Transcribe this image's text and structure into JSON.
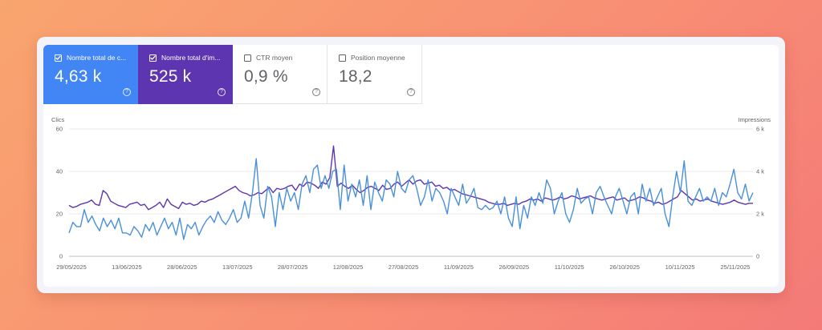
{
  "metrics": [
    {
      "label": "Nombre total de c...",
      "value": "4,63 k",
      "checked": true,
      "color": "#4285f4"
    },
    {
      "label": "Nombre total d'im...",
      "value": "525 k",
      "checked": true,
      "color": "#5e35b1"
    },
    {
      "label": "CTR moyen",
      "value": "0,9 %",
      "checked": false
    },
    {
      "label": "Position moyenne",
      "value": "18,2",
      "checked": false
    }
  ],
  "help_glyph": "?",
  "chart_data": {
    "type": "line",
    "left_axis_label": "Clics",
    "right_axis_label": "Impressions",
    "left_ticks": [
      "0",
      "20",
      "40",
      "60"
    ],
    "right_ticks": [
      "0",
      "2 k",
      "4 k",
      "6 k"
    ],
    "left_ylim": [
      0,
      60
    ],
    "right_ylim": [
      0,
      6000
    ],
    "grid": true,
    "x_labels": [
      "29/05/2025",
      "13/06/2025",
      "28/06/2025",
      "13/07/2025",
      "28/07/2025",
      "12/08/2025",
      "27/08/2025",
      "11/09/2025",
      "26/09/2025",
      "11/10/2025",
      "26/10/2025",
      "10/11/2025",
      "25/11/2025"
    ],
    "series": [
      {
        "axis": "left",
        "color": "#4a90d9",
        "values": [
          11,
          16,
          14,
          14,
          22,
          16,
          19,
          15,
          12,
          18,
          14,
          17,
          13,
          18,
          11,
          11,
          10,
          14,
          12,
          9,
          15,
          12,
          16,
          10,
          14,
          18,
          13,
          16,
          10,
          18,
          8,
          15,
          13,
          16,
          10,
          14,
          17,
          19,
          16,
          21,
          17,
          15,
          18,
          22,
          16,
          18,
          26,
          18,
          30,
          46,
          24,
          18,
          33,
          28,
          14,
          30,
          22,
          32,
          26,
          30,
          22,
          34,
          38,
          30,
          41,
          43,
          32,
          38,
          32,
          40,
          41,
          22,
          43,
          26,
          34,
          28,
          36,
          24,
          38,
          22,
          35,
          30,
          26,
          36,
          34,
          28,
          40,
          32,
          30,
          36,
          38,
          32,
          24,
          28,
          36,
          26,
          32,
          30,
          26,
          20,
          32,
          28,
          24,
          34,
          25,
          28,
          32,
          23,
          22,
          24,
          22,
          23,
          26,
          20,
          28,
          18,
          14,
          28,
          13,
          24,
          18,
          28,
          24,
          30,
          25,
          36,
          32,
          20,
          26,
          30,
          20,
          16,
          22,
          32,
          25,
          27,
          28,
          20,
          30,
          33,
          28,
          24,
          20,
          28,
          32,
          26,
          20,
          28,
          30,
          20,
          34,
          26,
          32,
          24,
          28,
          32,
          20,
          14,
          28,
          40,
          30,
          45,
          26,
          24,
          28,
          32,
          26,
          28,
          26,
          32,
          24,
          30,
          28,
          34,
          41,
          30,
          27,
          34,
          26,
          30
        ]
      },
      {
        "axis": "right",
        "color": "#5e35b1",
        "values": [
          2400,
          2300,
          2350,
          2450,
          2500,
          2550,
          2650,
          2450,
          2400,
          3100,
          2950,
          2600,
          2500,
          2400,
          2350,
          2300,
          2450,
          2500,
          2550,
          2400,
          2450,
          2200,
          2300,
          2400,
          2550,
          2300,
          2700,
          2450,
          2350,
          2250,
          2550,
          2450,
          2500,
          2400,
          2450,
          2600,
          2550,
          2650,
          2700,
          2800,
          2900,
          3000,
          3100,
          3200,
          3300,
          3100,
          3000,
          2950,
          2850,
          2900,
          3000,
          2950,
          3100,
          3250,
          3000,
          3200,
          3150,
          3200,
          3300,
          3350,
          3100,
          3400,
          3300,
          3500,
          3450,
          3350,
          3200,
          3500,
          3400,
          3700,
          5200,
          3300,
          3450,
          3300,
          3200,
          3350,
          3150,
          3000,
          3100,
          3250,
          3300,
          3200,
          3100,
          3350,
          3150,
          3200,
          3400,
          3500,
          3300,
          3450,
          3600,
          3400,
          3550,
          3600,
          3400,
          3450,
          3500,
          3300,
          3350,
          3200,
          3250,
          3100,
          3150,
          3050,
          2950,
          2900,
          2850,
          2800,
          2750,
          2700,
          2650,
          2550,
          2500,
          2450,
          2450,
          2500,
          2400,
          2450,
          2500,
          2450,
          2550,
          2600,
          2700,
          2650,
          2700,
          2600,
          2750,
          2700,
          2650,
          2700,
          2800,
          2700,
          2750,
          2850,
          2800,
          2700,
          2750,
          2800,
          2850,
          2750,
          2700,
          2650,
          2700,
          2750,
          2800,
          2650,
          2700,
          2750,
          2600,
          2650,
          2700,
          2800,
          2750,
          2650,
          2600,
          2500,
          2550,
          2450,
          2500,
          2600,
          2700,
          2800,
          3100,
          2950,
          2800,
          2650,
          2700,
          2600,
          2650,
          2700,
          2600,
          2550,
          2500,
          2450,
          2500,
          2550,
          2650,
          2550,
          2500,
          2450,
          2500,
          2500
        ]
      }
    ]
  }
}
